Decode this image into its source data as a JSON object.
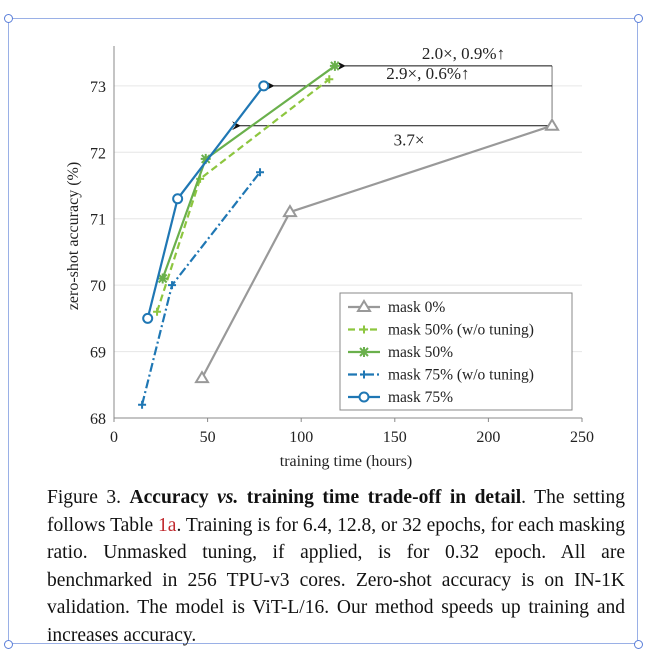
{
  "chart_data": {
    "type": "line",
    "xlabel": "training time (hours)",
    "ylabel": "zero-shot accuracy (%)",
    "xlim": [
      0,
      250
    ],
    "ylim": [
      68,
      73.6
    ],
    "xticks": [
      0,
      50,
      100,
      150,
      200,
      250
    ],
    "yticks": [
      68,
      69,
      70,
      71,
      72,
      73
    ],
    "grid": "horizontal",
    "legend_position": "bottom-right",
    "series": [
      {
        "name": "mask 0%",
        "color": "#999999",
        "dash": "solid",
        "marker": "triangle",
        "x": [
          47,
          94,
          234
        ],
        "y": [
          68.6,
          71.1,
          72.4
        ]
      },
      {
        "name": "mask 50% (w/o tuning)",
        "color": "#8dc63f",
        "dash": "dashed",
        "marker": "plus",
        "x": [
          23,
          46,
          115
        ],
        "y": [
          69.6,
          71.6,
          73.1
        ]
      },
      {
        "name": "mask 50%",
        "color": "#6ab04c",
        "dash": "solid",
        "marker": "asterisk",
        "x": [
          26,
          49,
          118
        ],
        "y": [
          70.1,
          71.9,
          73.3
        ]
      },
      {
        "name": "mask 75% (w/o tuning)",
        "color": "#1f77b4",
        "dash": "dashdot",
        "marker": "plus",
        "x": [
          15,
          31,
          78
        ],
        "y": [
          68.2,
          70.0,
          71.7
        ]
      },
      {
        "name": "mask 75%",
        "color": "#1f77b4",
        "dash": "solid",
        "marker": "circle",
        "x": [
          18,
          34,
          80
        ],
        "y": [
          69.5,
          71.3,
          73.0
        ]
      }
    ],
    "annotations": [
      {
        "text": "2.0×, 0.9%↑",
        "from": [
          234,
          73.3
        ],
        "to": [
          118,
          73.3
        ]
      },
      {
        "text": "2.9×, 0.6%↑",
        "from": [
          234,
          73.0
        ],
        "to": [
          80,
          73.0
        ]
      },
      {
        "text": "3.7×",
        "from": [
          234,
          72.4
        ],
        "to": [
          62,
          72.4
        ]
      }
    ]
  },
  "caption": {
    "figure_label": "Figure 3.",
    "title_part1": "Accuracy ",
    "title_vs": "vs.",
    "title_part2": " training time trade-off in detail",
    "text1": ". The setting follows Table ",
    "ref": "1a",
    "text2": ". Training is for 6.4, 12.8, or 32 epochs, for each masking ratio. Unmasked tuning, if applied, is for 0.32 epoch. All are benchmarked in 256 TPU-v3 cores. Zero-shot accuracy is on IN-1K validation. The model is ViT-L/16. Our method speeds up training and increases accuracy."
  }
}
